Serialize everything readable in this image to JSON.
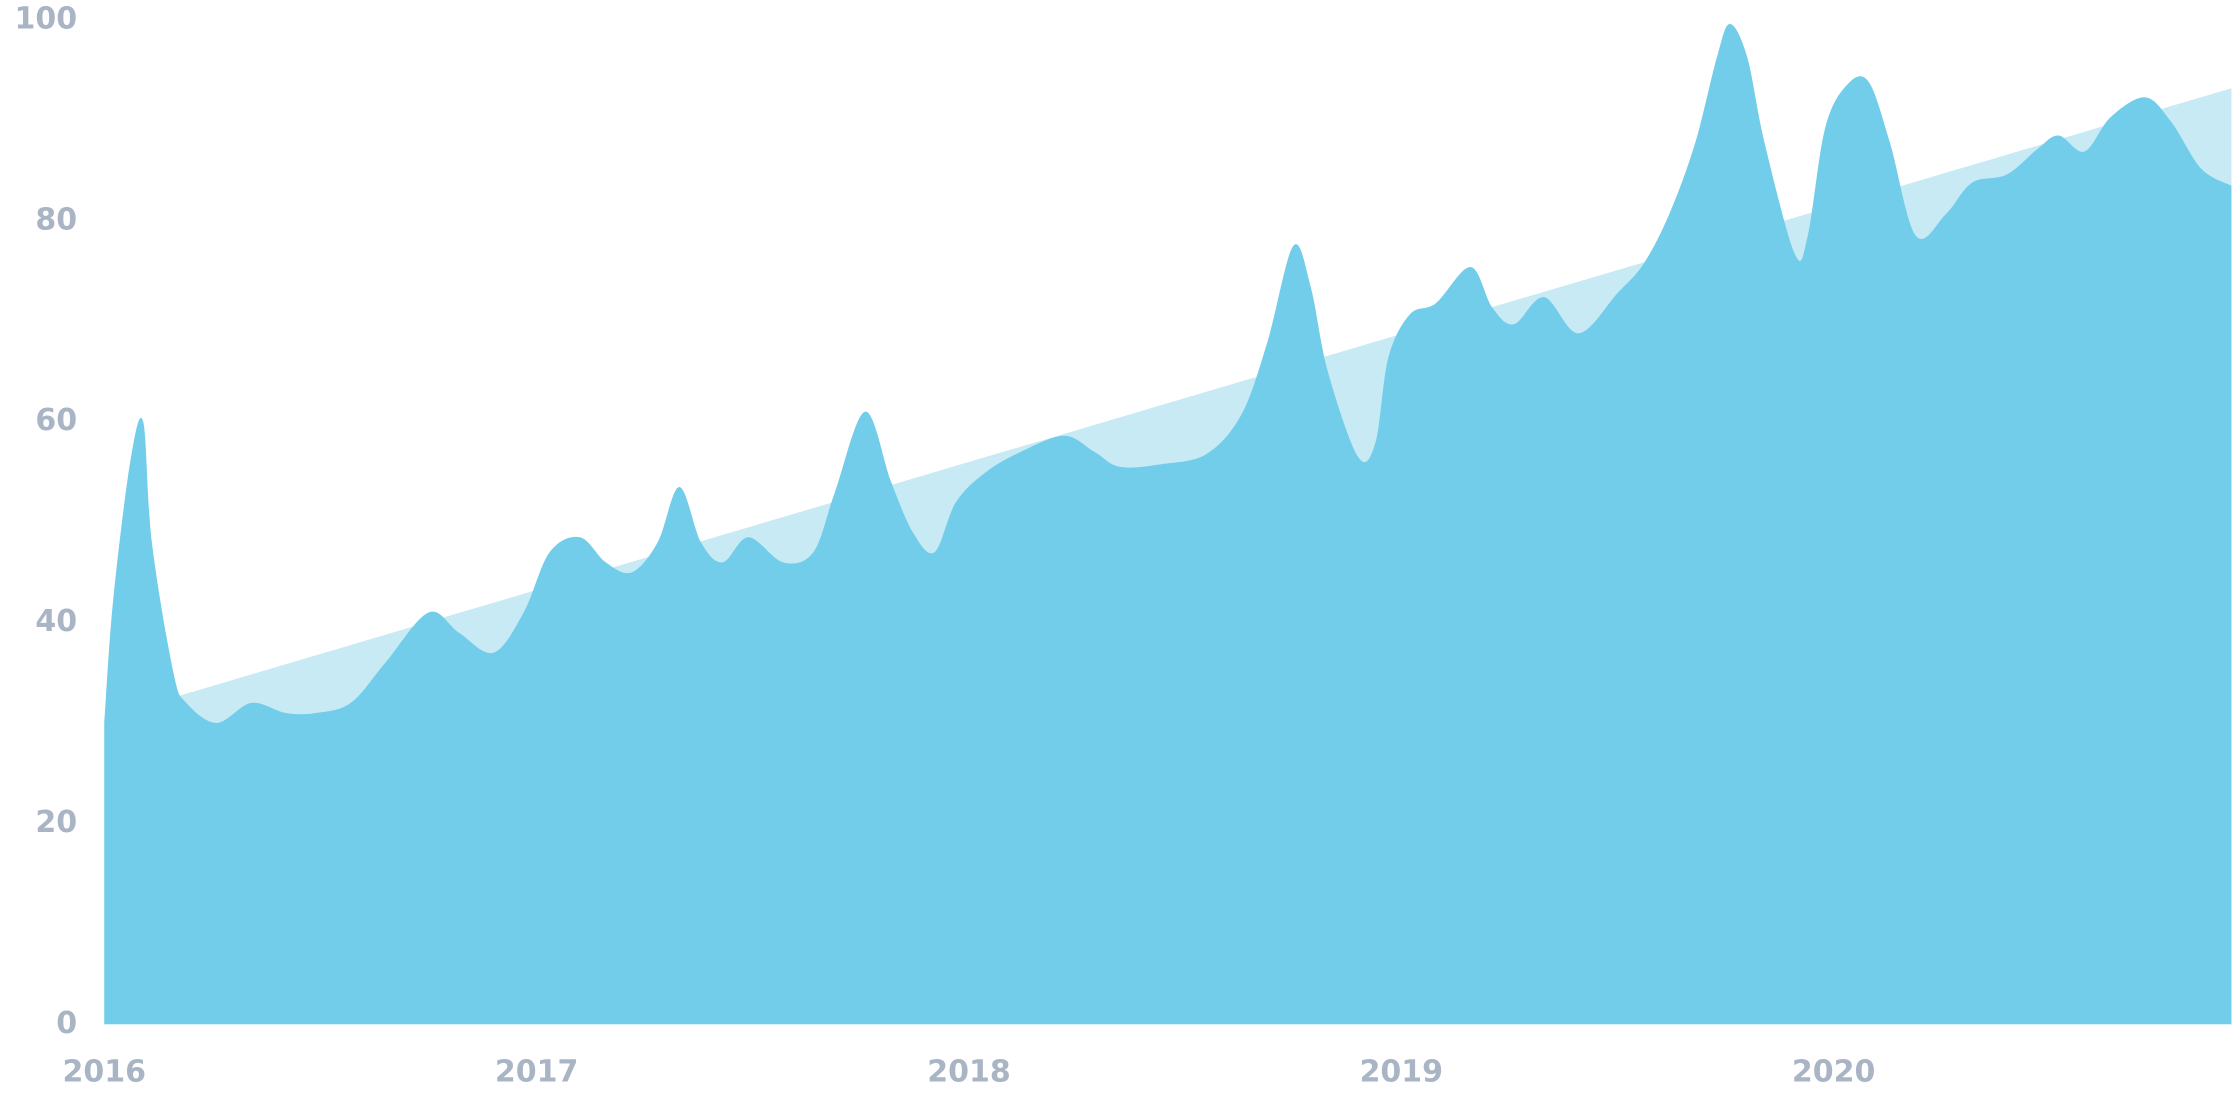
{
  "chart_data": {
    "type": "area",
    "xlim": [
      2016,
      2020.92
    ],
    "xticks": [
      2016,
      2017,
      2018,
      2019,
      2020
    ],
    "ylim": [
      0,
      100
    ],
    "yticks": [
      0,
      20,
      40,
      60,
      80,
      100
    ],
    "grid": false,
    "series": [
      {
        "color": "#c7eaf5",
        "x": [
          2016,
          2020.92
        ],
        "values": [
          30.5,
          93.2
        ]
      },
      {
        "color": "#72cdea",
        "x": [
          2016.0,
          2016.02,
          2016.06,
          2016.09,
          2016.11,
          2016.16,
          2016.19,
          2016.26,
          2016.34,
          2016.42,
          2016.49,
          2016.57,
          2016.65,
          2016.75,
          2016.82,
          2016.9,
          2016.97,
          2017.03,
          2017.1,
          2017.16,
          2017.22,
          2017.28,
          2017.33,
          2017.38,
          2017.43,
          2017.49,
          2017.57,
          2017.64,
          2017.69,
          2017.76,
          2017.82,
          2017.87,
          2017.92,
          2017.97,
          2018.04,
          2018.12,
          2018.22,
          2018.29,
          2018.35,
          2018.45,
          2018.55,
          2018.63,
          2018.69,
          2018.75,
          2018.79,
          2018.83,
          2018.9,
          2018.94,
          2018.97,
          2019.02,
          2019.08,
          2019.16,
          2019.21,
          2019.26,
          2019.33,
          2019.41,
          2019.5,
          2019.56,
          2019.62,
          2019.68,
          2019.73,
          2019.76,
          2019.8,
          2019.84,
          2019.91,
          2019.94,
          2019.98,
          2020.03,
          2020.08,
          2020.13,
          2020.19,
          2020.26,
          2020.32,
          2020.4,
          2020.47,
          2020.52,
          2020.58,
          2020.64,
          2020.72,
          2020.78,
          2020.85,
          2020.92
        ],
        "values": [
          30,
          42,
          56,
          60,
          48,
          35,
          32,
          30,
          32,
          31,
          31,
          32,
          36,
          41,
          39,
          37,
          41,
          47,
          48.5,
          46,
          45,
          48,
          53.5,
          48,
          46,
          48.5,
          46,
          47,
          53,
          61,
          54,
          49,
          47,
          52,
          55,
          57,
          58.6,
          57,
          55.5,
          55.8,
          56.8,
          60.7,
          67.9,
          77.5,
          73.5,
          65,
          56.5,
          57.9,
          66.4,
          70.7,
          71.8,
          75.4,
          71.4,
          69.7,
          72.4,
          68.8,
          72.8,
          75.7,
          80.7,
          87.8,
          96.3,
          99.6,
          96.3,
          87.8,
          76.7,
          78.5,
          89.2,
          93.5,
          93.9,
          87.8,
          78.5,
          80.7,
          83.8,
          84.6,
          87.1,
          88.5,
          86.9,
          90.3,
          92.3,
          89.9,
          85.2,
          83.5
        ]
      }
    ]
  }
}
